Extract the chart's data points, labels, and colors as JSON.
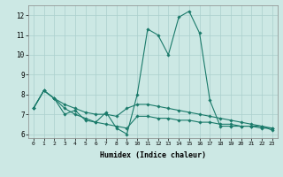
{
  "xlabel": "Humidex (Indice chaleur)",
  "x_values": [
    0,
    1,
    2,
    3,
    4,
    5,
    6,
    7,
    8,
    9,
    10,
    11,
    12,
    13,
    14,
    15,
    16,
    17,
    18,
    19,
    20,
    21,
    22,
    23
  ],
  "line_main": [
    7.3,
    8.2,
    7.8,
    7.0,
    7.2,
    6.7,
    6.6,
    7.1,
    6.3,
    6.0,
    8.0,
    11.3,
    11.0,
    10.0,
    11.9,
    12.2,
    11.1,
    7.7,
    6.4,
    6.4,
    6.4,
    6.4,
    6.4,
    6.2
  ],
  "line_upper": [
    7.3,
    8.2,
    7.8,
    7.5,
    7.3,
    7.1,
    7.0,
    7.0,
    6.9,
    7.3,
    7.5,
    7.5,
    7.4,
    7.3,
    7.2,
    7.1,
    7.0,
    6.9,
    6.8,
    6.7,
    6.6,
    6.5,
    6.4,
    6.3
  ],
  "line_lower": [
    7.3,
    8.2,
    7.8,
    7.3,
    7.0,
    6.8,
    6.6,
    6.5,
    6.4,
    6.3,
    6.9,
    6.9,
    6.8,
    6.8,
    6.7,
    6.7,
    6.6,
    6.6,
    6.5,
    6.5,
    6.4,
    6.4,
    6.3,
    6.3
  ],
  "line_color": "#1a7a6a",
  "bg_color": "#cce8e4",
  "grid_color": "#aacfcc",
  "ylim": [
    5.8,
    12.5
  ],
  "yticks": [
    6,
    7,
    8,
    9,
    10,
    11,
    12
  ],
  "marker": "D",
  "markersize": 1.8,
  "linewidth": 0.8
}
